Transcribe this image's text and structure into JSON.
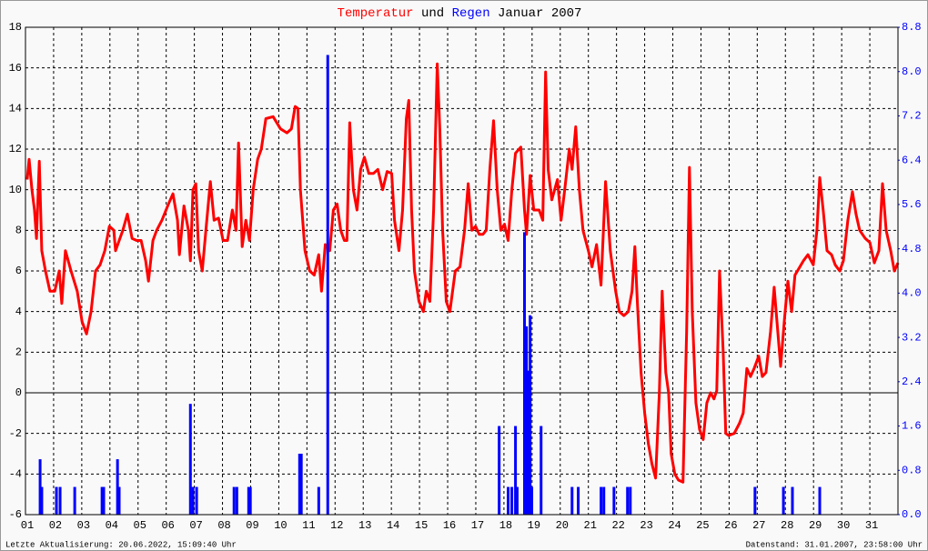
{
  "chart_data": {
    "type": "line_bar",
    "title_connector": "und",
    "title_period": "Januar 2007",
    "footer_left": "Letzte Aktualisierung: 20.06.2022, 15:09:40 Uhr",
    "footer_right": "Datenstand: 31.01.2007, 23:58:00 Uhr",
    "xlim": [
      1,
      32
    ],
    "xticks": [
      {
        "value": 1,
        "label": "01"
      },
      {
        "value": 2,
        "label": "02"
      },
      {
        "value": 3,
        "label": "03"
      },
      {
        "value": 4,
        "label": "04"
      },
      {
        "value": 5,
        "label": "05"
      },
      {
        "value": 6,
        "label": "06"
      },
      {
        "value": 7,
        "label": "07"
      },
      {
        "value": 8,
        "label": "08"
      },
      {
        "value": 9,
        "label": "09"
      },
      {
        "value": 10,
        "label": "10"
      },
      {
        "value": 11,
        "label": "11"
      },
      {
        "value": 12,
        "label": "12"
      },
      {
        "value": 13,
        "label": "13"
      },
      {
        "value": 14,
        "label": "14"
      },
      {
        "value": 15,
        "label": "15"
      },
      {
        "value": 16,
        "label": "16"
      },
      {
        "value": 17,
        "label": "17"
      },
      {
        "value": 18,
        "label": "18"
      },
      {
        "value": 19,
        "label": "19"
      },
      {
        "value": 20,
        "label": "20"
      },
      {
        "value": 21,
        "label": "21"
      },
      {
        "value": 22,
        "label": "22"
      },
      {
        "value": 23,
        "label": "23"
      },
      {
        "value": 24,
        "label": "24"
      },
      {
        "value": 25,
        "label": "25"
      },
      {
        "value": 26,
        "label": "26"
      },
      {
        "value": 27,
        "label": "27"
      },
      {
        "value": 28,
        "label": "28"
      },
      {
        "value": 29,
        "label": "29"
      },
      {
        "value": 30,
        "label": "30"
      },
      {
        "value": 31,
        "label": "31"
      }
    ],
    "ylim": [
      -6,
      18
    ],
    "yticks": [
      -6,
      -4,
      -2,
      0,
      2,
      4,
      6,
      8,
      10,
      12,
      14,
      16,
      18
    ],
    "y2lim": [
      0,
      8.8
    ],
    "y2ticks": [
      {
        "value": 0,
        "label": "0.0"
      },
      0.8,
      1.6,
      2.4,
      3.2,
      {
        "value": 4,
        "label": "4.0"
      },
      4.8,
      5.6,
      6.4,
      7.2,
      {
        "value": 8,
        "label": "8.0"
      },
      8.8
    ],
    "grid": true,
    "series": [
      {
        "name": "Temperatur",
        "color": "#ff0000",
        "kind": "line",
        "x": [
          1.06,
          1.13,
          1.23,
          1.32,
          1.39,
          1.49,
          1.58,
          1.71,
          1.87,
          2.04,
          2.2,
          2.29,
          2.42,
          2.62,
          2.84,
          3.01,
          3.17,
          3.33,
          3.49,
          3.65,
          3.82,
          3.98,
          4.14,
          4.2,
          4.46,
          4.62,
          4.79,
          4.95,
          5.11,
          5.27,
          5.37,
          5.53,
          5.66,
          5.85,
          6.08,
          6.24,
          6.4,
          6.47,
          6.63,
          6.79,
          6.86,
          6.95,
          7.05,
          7.15,
          7.28,
          7.41,
          7.57,
          7.7,
          7.86,
          8.02,
          8.18,
          8.35,
          8.48,
          8.57,
          8.7,
          8.83,
          8.96,
          9.09,
          9.25,
          9.38,
          9.54,
          9.8,
          10.06,
          10.29,
          10.45,
          10.58,
          10.68,
          10.77,
          10.93,
          11.1,
          11.26,
          11.42,
          11.52,
          11.65,
          11.81,
          11.94,
          12.07,
          12.2,
          12.33,
          12.42,
          12.52,
          12.65,
          12.78,
          12.91,
          13.04,
          13.2,
          13.36,
          13.52,
          13.69,
          13.85,
          14.01,
          14.11,
          14.27,
          14.4,
          14.53,
          14.62,
          14.72,
          14.82,
          14.98,
          15.14,
          15.24,
          15.37,
          15.5,
          15.63,
          15.72,
          15.82,
          15.95,
          16.08,
          16.27,
          16.44,
          16.6,
          16.73,
          16.86,
          16.99,
          17.12,
          17.25,
          17.37,
          17.5,
          17.63,
          17.76,
          17.89,
          18.02,
          18.15,
          18.28,
          18.41,
          18.6,
          18.73,
          18.8,
          18.93,
          19.06,
          19.25,
          19.38,
          19.48,
          19.57,
          19.7,
          19.9,
          20.03,
          20.16,
          20.32,
          20.42,
          20.55,
          20.68,
          20.81,
          21.0,
          21.13,
          21.29,
          21.45,
          21.61,
          21.78,
          21.97,
          22.1,
          22.26,
          22.42,
          22.55,
          22.65,
          22.74,
          22.87,
          23.0,
          23.13,
          23.26,
          23.39,
          23.52,
          23.62,
          23.75,
          23.85,
          23.94,
          24.07,
          24.2,
          24.36,
          24.49,
          24.59,
          24.69,
          24.82,
          24.95,
          25.08,
          25.21,
          25.34,
          25.46,
          25.56,
          25.66,
          25.79,
          25.88,
          25.98,
          26.18,
          26.37,
          26.5,
          26.63,
          26.76,
          26.89,
          27.05,
          27.18,
          27.31,
          27.47,
          27.6,
          27.7,
          27.83,
          27.96,
          28.09,
          28.22,
          28.34,
          28.47,
          28.64,
          28.8,
          28.99,
          29.12,
          29.22,
          29.35,
          29.48,
          29.64,
          29.77,
          29.93,
          30.06,
          30.22,
          30.38,
          30.51,
          30.64,
          30.84,
          31.0,
          31.16,
          31.32,
          31.45,
          31.58,
          31.74,
          31.87,
          32.0
        ],
        "values": [
          10.5,
          11.5,
          10,
          9,
          7.6,
          11.4,
          7,
          6,
          5,
          5,
          6,
          4.4,
          7,
          6,
          5,
          3.5,
          2.9,
          4,
          6,
          6.3,
          7,
          8.2,
          8,
          7,
          8,
          8.8,
          7.6,
          7.5,
          7.5,
          6.5,
          5.5,
          7.5,
          8,
          8.5,
          9.3,
          9.8,
          8.5,
          6.8,
          9.2,
          8,
          6.5,
          10,
          10.3,
          7,
          6,
          8,
          10.4,
          8.5,
          8.6,
          7.5,
          7.5,
          9,
          8,
          12.3,
          7.2,
          8.5,
          7.5,
          10,
          11.5,
          12,
          13.5,
          13.6,
          13,
          12.8,
          13,
          14.1,
          14,
          10,
          7,
          6,
          5.8,
          6.8,
          5,
          7.3,
          7,
          9,
          9.3,
          8,
          7.5,
          7.5,
          13.3,
          10,
          9,
          11,
          11.6,
          10.8,
          10.8,
          11,
          10,
          10.9,
          10.8,
          8.5,
          7,
          9,
          13.5,
          14.4,
          9,
          6,
          4.5,
          4,
          5,
          4.5,
          9,
          16.2,
          13,
          8,
          4.5,
          4,
          6,
          6.2,
          8,
          10.3,
          8,
          8.2,
          7.8,
          7.8,
          8,
          11,
          13.4,
          10,
          8,
          8.3,
          7.5,
          10,
          11.8,
          12.1,
          9,
          7.8,
          10.7,
          9,
          9,
          8.5,
          15.8,
          11,
          9.5,
          10.5,
          8.5,
          10,
          12,
          11,
          13.1,
          10,
          8,
          7,
          6.2,
          7.3,
          5.3,
          10.4,
          7,
          5,
          4,
          3.8,
          4,
          5,
          7.2,
          4.5,
          1,
          -1,
          -2.5,
          -3.5,
          -4.2,
          0,
          5,
          1,
          0,
          -3,
          -4,
          -4.3,
          -4.4,
          3,
          11.1,
          4,
          -0.5,
          -1.8,
          -2.3,
          -0.5,
          0,
          -0.3,
          0.1,
          6,
          2,
          -2,
          -2.1,
          -2,
          -1.5,
          -1,
          1.2,
          0.8,
          1.2,
          1.8,
          0.8,
          1,
          3,
          5.2,
          3.5,
          1.3,
          3.5,
          5.5,
          4,
          5.8,
          6.1,
          6.5,
          6.8,
          6.3,
          8,
          10.6,
          8.9,
          7,
          6.8,
          6.3,
          6,
          6.5,
          8.5,
          9.9,
          8.8,
          8,
          7.6,
          7.4,
          6.4,
          7,
          10.3,
          8,
          7,
          6,
          6.4
        ]
      },
      {
        "name": "Regen",
        "color": "#0000ff",
        "kind": "bar",
        "axis": "y2",
        "x": [
          1.52,
          1.58,
          2.1,
          2.23,
          2.75,
          3.72,
          3.78,
          4.27,
          4.33,
          6.86,
          6.95,
          7.08,
          8.41,
          8.51,
          8.93,
          8.99,
          10.74,
          10.8,
          11.42,
          11.74,
          17.83,
          18.15,
          18.28,
          18.41,
          18.47,
          18.73,
          18.8,
          18.86,
          18.93,
          18.99,
          19.32,
          20.42,
          20.64,
          21.45,
          21.55,
          21.91,
          22.39,
          22.49,
          26.92,
          27.93,
          28.25,
          29.22
        ],
        "values": [
          1.0,
          0.5,
          0.5,
          0.5,
          0.5,
          0.5,
          0.5,
          1.0,
          0.5,
          2.0,
          0.5,
          0.5,
          0.5,
          0.5,
          0.5,
          0.5,
          1.1,
          1.1,
          0.5,
          8.3,
          1.6,
          0.5,
          0.5,
          1.6,
          0.5,
          5.1,
          3.4,
          2.6,
          3.6,
          0.5,
          1.6,
          0.5,
          0.5,
          0.5,
          0.5,
          0.5,
          0.5,
          0.5,
          0.5,
          0.5,
          0.5,
          0.5
        ]
      }
    ]
  }
}
